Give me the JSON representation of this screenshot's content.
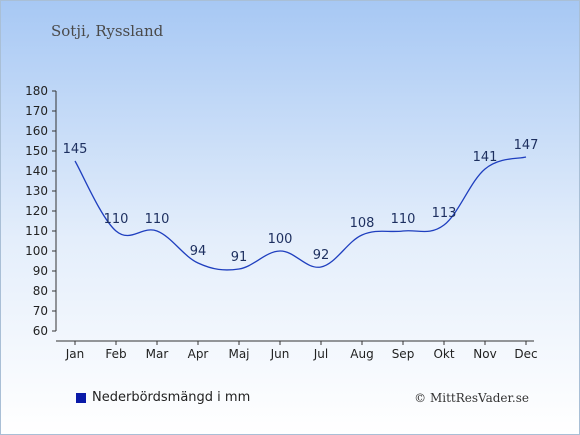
{
  "header": {
    "title": "Sotji, Ryssland"
  },
  "chart_data": {
    "type": "line",
    "categories": [
      "Jan",
      "Feb",
      "Mar",
      "Apr",
      "Maj",
      "Jun",
      "Jul",
      "Aug",
      "Sep",
      "Okt",
      "Nov",
      "Dec"
    ],
    "series": [
      {
        "name": "Nederbördsmängd i mm",
        "values": [
          145,
          110,
          110,
          94,
          91,
          100,
          92,
          108,
          110,
          113,
          141,
          147
        ],
        "color": "#1f3fbf"
      }
    ],
    "ylim": [
      60,
      180
    ],
    "yticks": [
      60,
      70,
      80,
      90,
      100,
      110,
      120,
      130,
      140,
      150,
      160,
      170,
      180
    ],
    "grid": false,
    "legend_position": "bottom-left"
  },
  "legend": {
    "label": "Nederbördsmängd i mm",
    "color": "#0a1aa8"
  },
  "footer": {
    "copyright": "© MittResVader.se"
  }
}
